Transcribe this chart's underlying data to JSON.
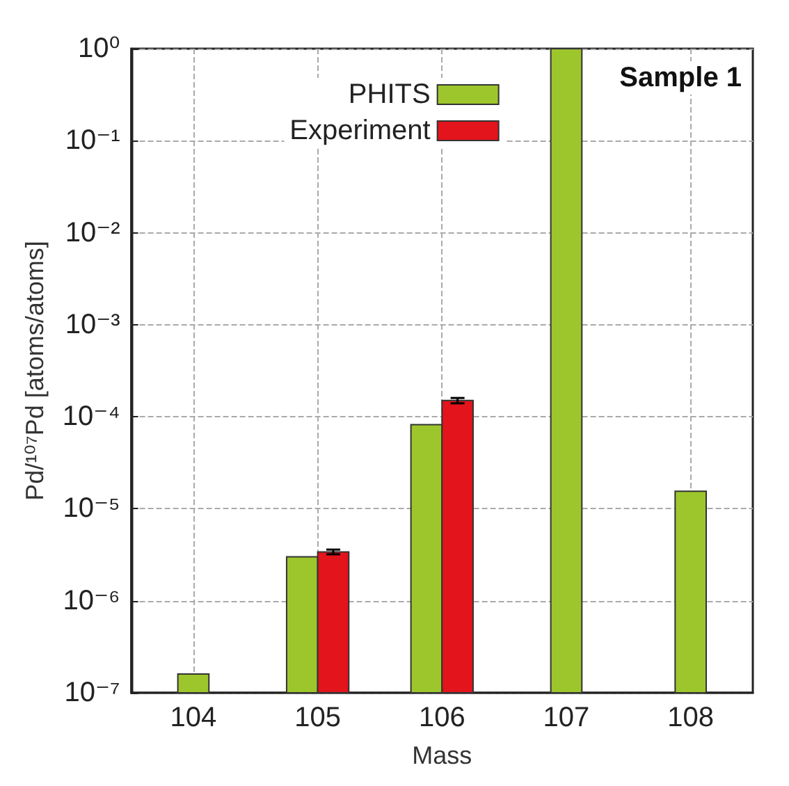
{
  "chart_data": {
    "type": "bar",
    "ylabel": "Pd/¹⁰⁷Pd [atoms/atoms]",
    "xlabel": "Mass",
    "annotations": [
      "Sample 1"
    ],
    "categories": [
      "104",
      "105",
      "106",
      "107",
      "108"
    ],
    "series": [
      {
        "name": "PHITS",
        "color": "#9dc62d",
        "values": [
          1.6e-07,
          3e-06,
          8.2e-05,
          1,
          1.55e-05
        ]
      },
      {
        "name": "Experiment",
        "color": "#e3141c",
        "values": [
          null,
          3.4e-06,
          0.00015,
          null,
          null
        ],
        "errors": [
          null,
          2e-07,
          1e-05,
          null,
          null
        ]
      }
    ],
    "log": true,
    "ylim": [
      1e-07,
      1
    ],
    "yticks": [
      {
        "value": 1e-07,
        "label": "10⁻⁷"
      },
      {
        "value": 1e-06,
        "label": "10⁻⁶"
      },
      {
        "value": 1e-05,
        "label": "10⁻⁵"
      },
      {
        "value": 0.0001,
        "label": "10⁻⁴"
      },
      {
        "value": 0.001,
        "label": "10⁻³"
      },
      {
        "value": 0.01,
        "label": "10⁻²"
      },
      {
        "value": 0.1,
        "label": "10⁻¹"
      },
      {
        "value": 1,
        "label": "10⁰"
      }
    ],
    "grid": true,
    "legend": "top"
  }
}
